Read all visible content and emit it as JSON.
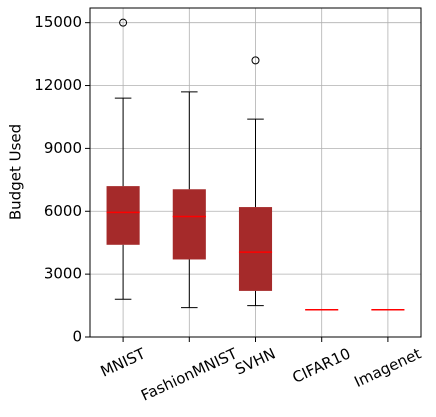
{
  "chart_data": {
    "type": "box",
    "ylabel": "Budget Used",
    "categories": [
      "MNIST",
      "FashionMNIST",
      "SVHN",
      "CIFAR10",
      "Imagenet"
    ],
    "boxes": [
      {
        "min": 1800,
        "q1": 4400,
        "median": 5950,
        "q3": 7200,
        "max": 11400,
        "outliers": [
          15000
        ]
      },
      {
        "min": 1400,
        "q1": 3700,
        "median": 5750,
        "q3": 7050,
        "max": 11700,
        "outliers": []
      },
      {
        "min": 1500,
        "q1": 2200,
        "median": 4050,
        "q3": 6200,
        "max": 10400,
        "outliers": [
          13200
        ]
      },
      {
        "min": 1300,
        "q1": 1300,
        "median": 1300,
        "q3": 1300,
        "max": 1300,
        "outliers": []
      },
      {
        "min": 1300,
        "q1": 1300,
        "median": 1300,
        "q3": 1300,
        "max": 1300,
        "outliers": []
      }
    ],
    "color": "#a52a2a",
    "median_color": "#ff0000",
    "ylim": [
      0,
      15700
    ],
    "yticks": [
      0,
      3000,
      6000,
      9000,
      12000,
      15000
    ],
    "grid": true
  }
}
